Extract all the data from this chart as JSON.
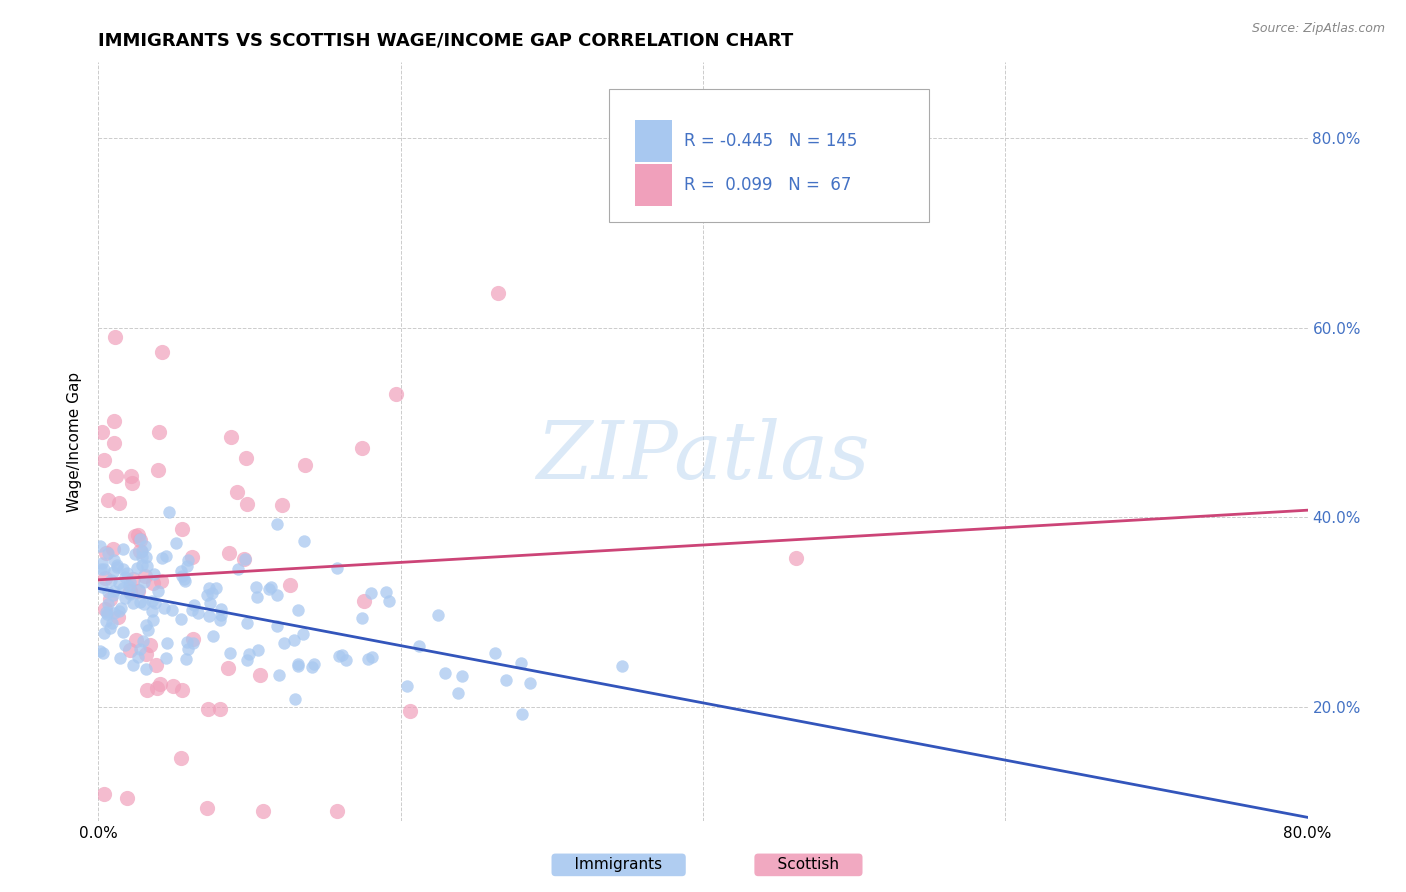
{
  "title": "IMMIGRANTS VS SCOTTISH WAGE/INCOME GAP CORRELATION CHART",
  "source_text": "Source: ZipAtlas.com",
  "ylabel": "Wage/Income Gap",
  "watermark": "ZIPatlas",
  "xmin": 0.0,
  "xmax": 0.8,
  "ymin": 0.08,
  "ymax": 0.88,
  "yticks": [
    0.2,
    0.4,
    0.6,
    0.8
  ],
  "xticks": [
    0.0,
    0.8
  ],
  "xticklabels": [
    "0.0%",
    "80.0%"
  ],
  "immigrants_color": "#A8C8F0",
  "scottish_color": "#F0A0BB",
  "immigrants_line_color": "#3355BB",
  "scottish_line_color": "#CC4477",
  "legend_immigrants_R": "-0.445",
  "legend_immigrants_N": "145",
  "legend_scottish_R": "0.099",
  "legend_scottish_N": "67",
  "background_color": "#FFFFFF",
  "grid_color": "#CCCCCC",
  "tick_label_color": "#4472C4"
}
